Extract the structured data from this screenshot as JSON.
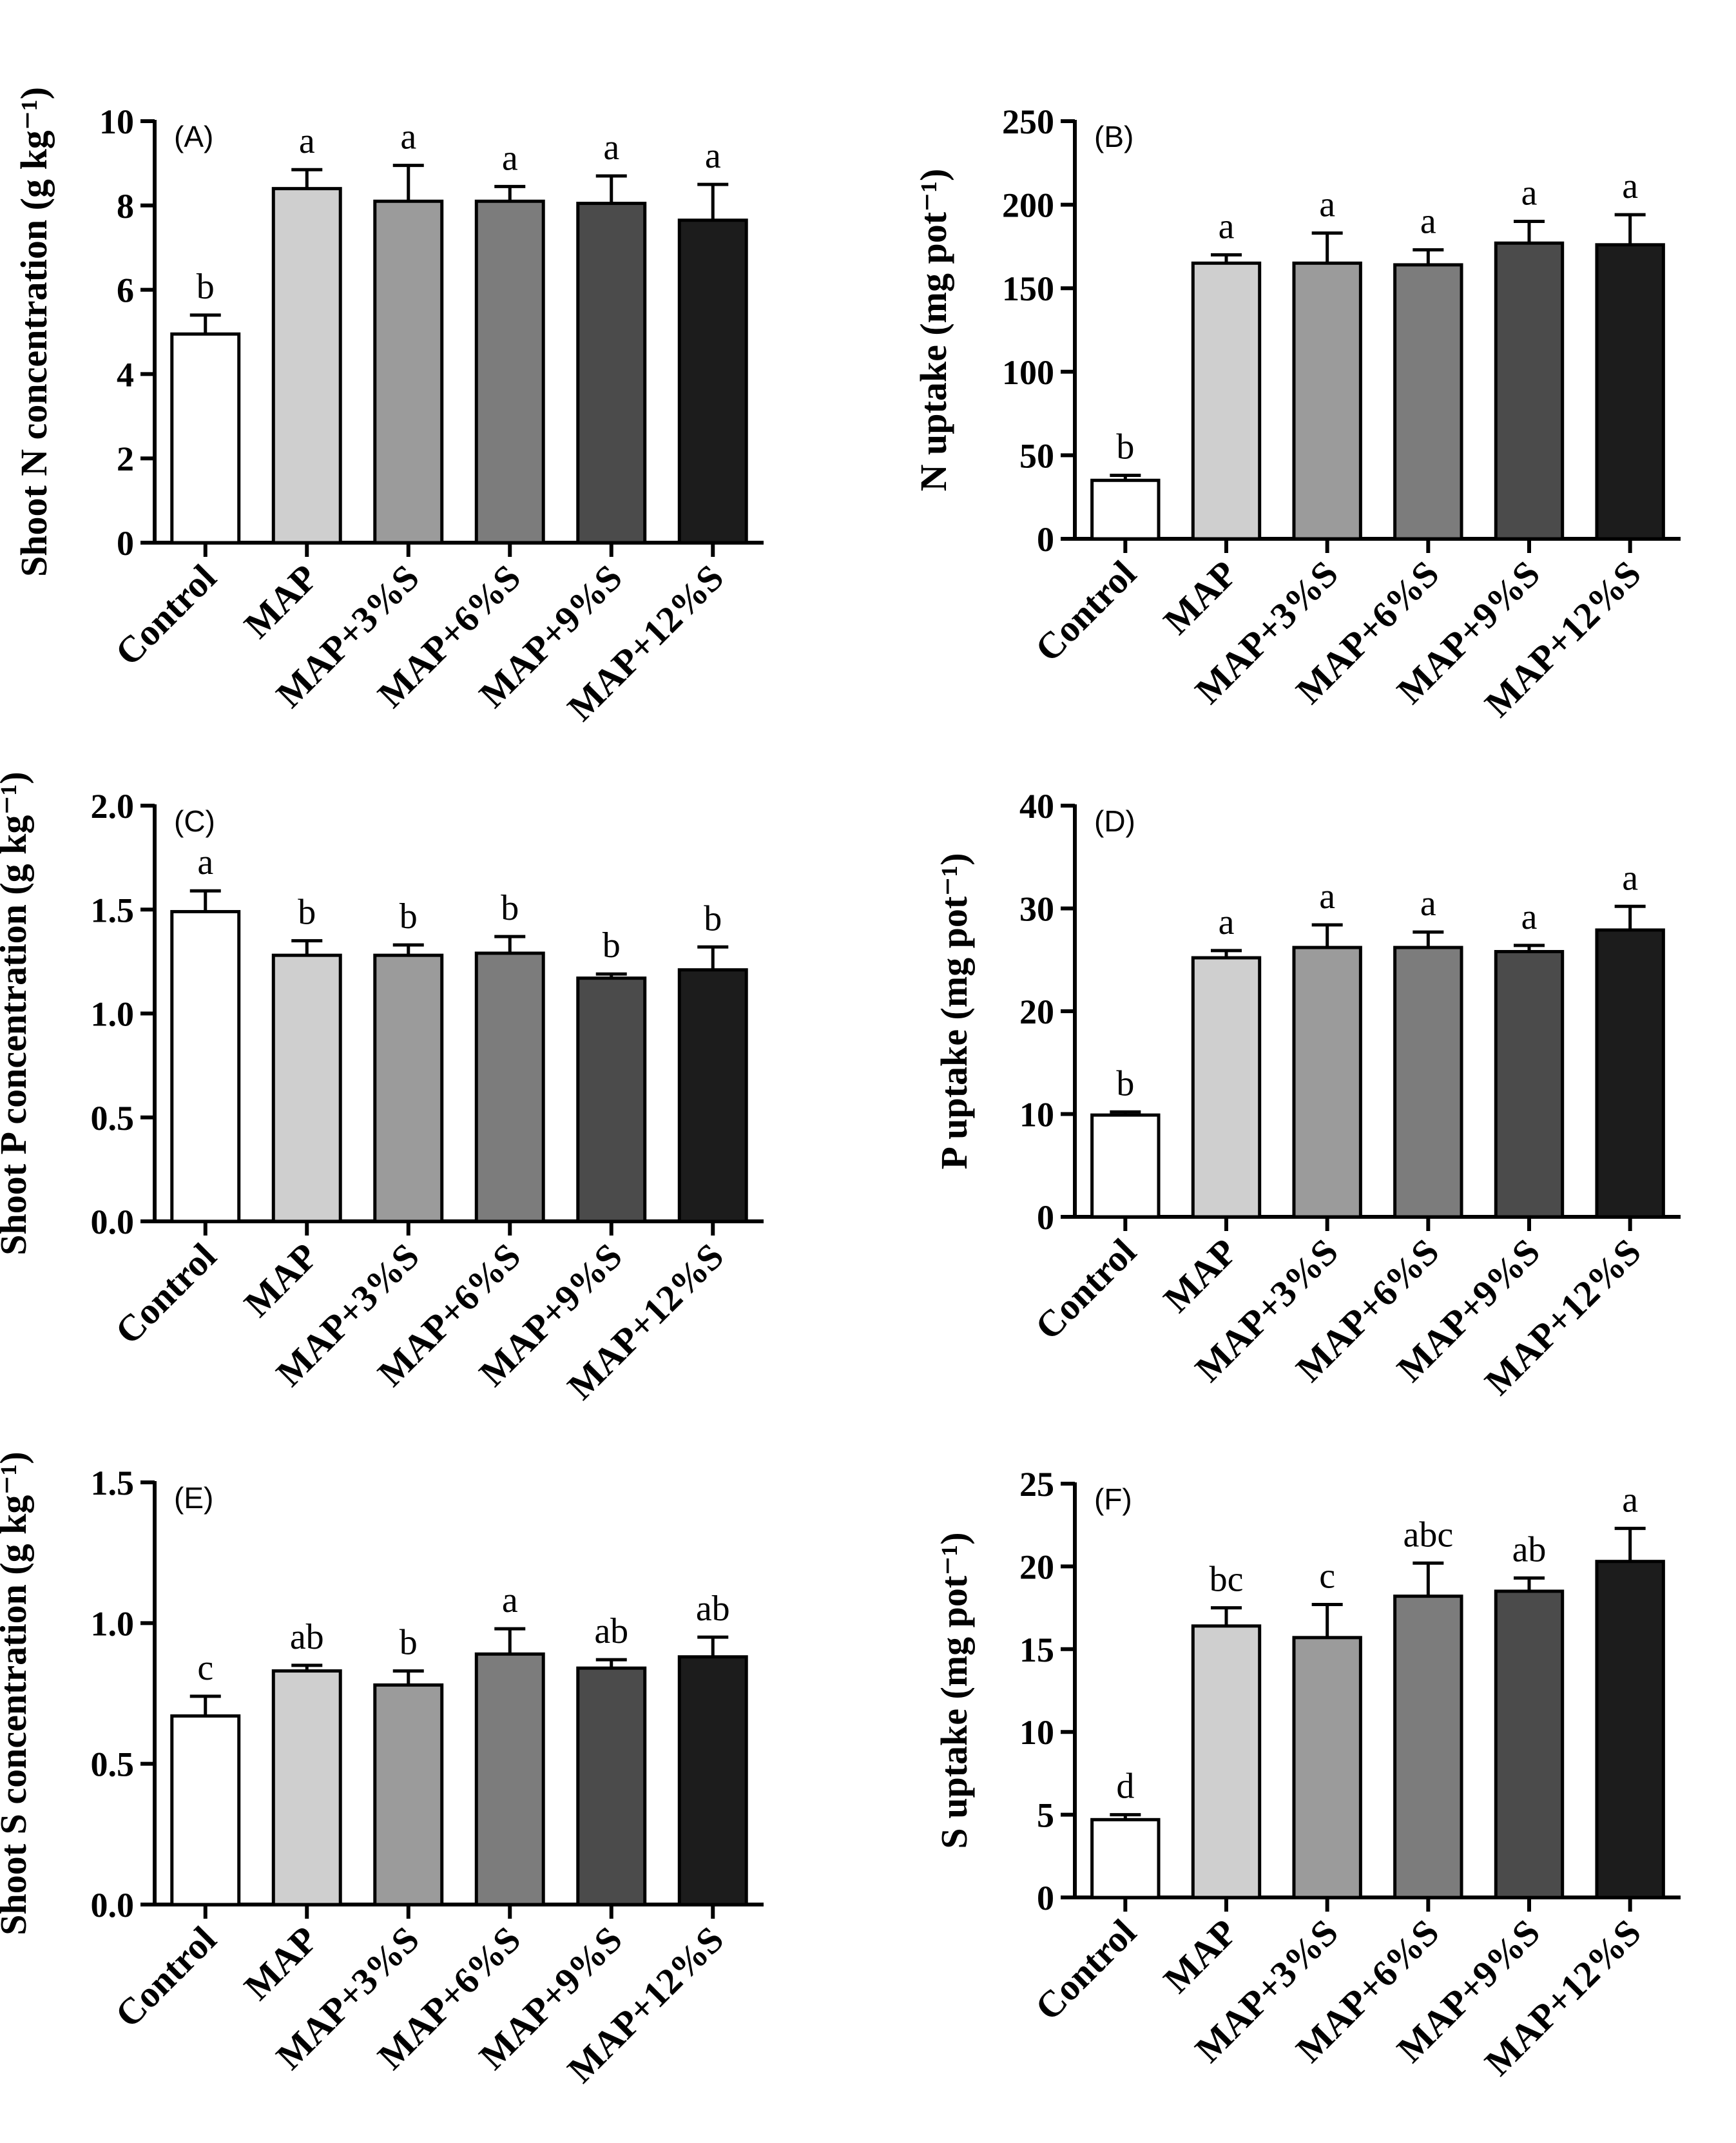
{
  "chart_data": [
    {
      "type": "bar",
      "panel": "(A)",
      "ylabel": "Shoot N concentration  (g kg⁻¹)",
      "ylim": [
        0,
        10
      ],
      "yticks": [
        "0",
        "2",
        "4",
        "6",
        "8",
        "10"
      ],
      "categories": [
        "Control",
        "MAP",
        "MAP+3%S",
        "MAP+6%S",
        "MAP+9%S",
        "MAP+12%S"
      ],
      "values": [
        4.95,
        8.4,
        8.1,
        8.1,
        8.05,
        7.65
      ],
      "errors": [
        0.45,
        0.45,
        0.85,
        0.35,
        0.65,
        0.85
      ],
      "letters": [
        "b",
        "a",
        "a",
        "a",
        "a",
        "a"
      ],
      "colors": [
        "#ffffff",
        "#cfcfcf",
        "#9b9b9b",
        "#7c7c7c",
        "#4b4b4b",
        "#1c1c1c"
      ]
    },
    {
      "type": "bar",
      "panel": "(B)",
      "ylabel": "N uptake (mg pot⁻¹)",
      "ylim": [
        0,
        250
      ],
      "yticks": [
        "0",
        "50",
        "100",
        "150",
        "200",
        "250"
      ],
      "categories": [
        "Control",
        "MAP",
        "MAP+3%S",
        "MAP+6%S",
        "MAP+9%S",
        "MAP+12%S"
      ],
      "values": [
        35,
        165,
        165,
        164,
        177,
        176
      ],
      "errors": [
        3,
        5,
        18,
        9,
        13,
        18
      ],
      "letters": [
        "b",
        "a",
        "a",
        "a",
        "a",
        "a"
      ],
      "colors": [
        "#ffffff",
        "#cfcfcf",
        "#9b9b9b",
        "#7c7c7c",
        "#4b4b4b",
        "#1c1c1c"
      ]
    },
    {
      "type": "bar",
      "panel": "(C)",
      "ylabel": "Shoot P concentration (g kg⁻¹)",
      "ylim": [
        0,
        2.0
      ],
      "yticks": [
        "0.0",
        "0.5",
        "1.0",
        "1.5",
        "2.0"
      ],
      "categories": [
        "Control",
        "MAP",
        "MAP+3%S",
        "MAP+6%S",
        "MAP+9%S",
        "MAP+12%S"
      ],
      "values": [
        1.49,
        1.28,
        1.28,
        1.29,
        1.17,
        1.21
      ],
      "errors": [
        0.1,
        0.07,
        0.05,
        0.08,
        0.02,
        0.11
      ],
      "letters": [
        "a",
        "b",
        "b",
        "b",
        "b",
        "b"
      ],
      "colors": [
        "#ffffff",
        "#cfcfcf",
        "#9b9b9b",
        "#7c7c7c",
        "#4b4b4b",
        "#1c1c1c"
      ]
    },
    {
      "type": "bar",
      "panel": "(D)",
      "ylabel": "P uptake (mg pot⁻¹)",
      "ylim": [
        0,
        40
      ],
      "yticks": [
        "0",
        "10",
        "20",
        "30",
        "40"
      ],
      "categories": [
        "Control",
        "MAP",
        "MAP+3%S",
        "MAP+6%S",
        "MAP+9%S",
        "MAP+12%S"
      ],
      "values": [
        9.9,
        25.2,
        26.2,
        26.2,
        25.8,
        27.9
      ],
      "errors": [
        0.3,
        0.7,
        2.2,
        1.5,
        0.6,
        2.3
      ],
      "letters": [
        "b",
        "a",
        "a",
        "a",
        "a",
        "a"
      ],
      "colors": [
        "#ffffff",
        "#cfcfcf",
        "#9b9b9b",
        "#7c7c7c",
        "#4b4b4b",
        "#1c1c1c"
      ]
    },
    {
      "type": "bar",
      "panel": "(E)",
      "ylabel": "Shoot S concentration (g kg⁻¹)",
      "ylim": [
        0,
        1.5
      ],
      "yticks": [
        "0.0",
        "0.5",
        "1.0",
        "1.5"
      ],
      "categories": [
        "Control",
        "MAP",
        "MAP+3%S",
        "MAP+6%S",
        "MAP+9%S",
        "MAP+12%S"
      ],
      "values": [
        0.67,
        0.83,
        0.78,
        0.89,
        0.84,
        0.88
      ],
      "errors": [
        0.07,
        0.02,
        0.05,
        0.09,
        0.03,
        0.07
      ],
      "letters": [
        "c",
        "ab",
        "b",
        "a",
        "ab",
        "ab"
      ],
      "colors": [
        "#ffffff",
        "#cfcfcf",
        "#9b9b9b",
        "#7c7c7c",
        "#4b4b4b",
        "#1c1c1c"
      ]
    },
    {
      "type": "bar",
      "panel": "(F)",
      "ylabel": "S uptake (mg pot⁻¹)",
      "ylim": [
        0,
        25
      ],
      "yticks": [
        "0",
        "5",
        "10",
        "15",
        "20",
        "25"
      ],
      "categories": [
        "Control",
        "MAP",
        "MAP+3%S",
        "MAP+6%S",
        "MAP+9%S",
        "MAP+12%S"
      ],
      "values": [
        4.7,
        16.4,
        15.7,
        18.2,
        18.5,
        20.3
      ],
      "errors": [
        0.3,
        1.1,
        2.0,
        2.0,
        0.8,
        2.0
      ],
      "letters": [
        "d",
        "bc",
        "c",
        "abc",
        "ab",
        "a"
      ],
      "colors": [
        "#ffffff",
        "#cfcfcf",
        "#9b9b9b",
        "#7c7c7c",
        "#4b4b4b",
        "#1c1c1c"
      ]
    }
  ]
}
